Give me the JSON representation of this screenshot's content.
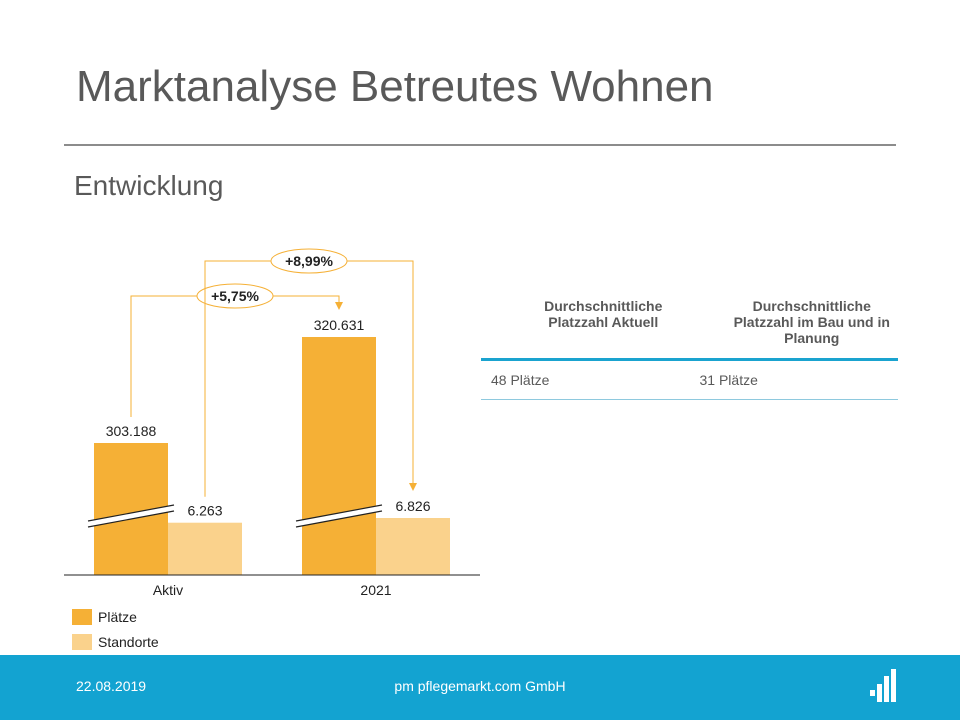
{
  "slide": {
    "title": "Marktanalyse Betreutes Wohnen",
    "subtitle": "Entwicklung"
  },
  "colors": {
    "plaetze": "#f5b036",
    "standorte": "#fad28c",
    "accent": "#13a3d1",
    "connector": "#f5b036"
  },
  "chart_data": {
    "type": "bar",
    "categories": [
      "Aktiv",
      "2021"
    ],
    "series": [
      {
        "name": "Plätze",
        "values": [
          303188,
          320631
        ],
        "labels": [
          "303.188",
          "320.631"
        ]
      },
      {
        "name": "Standorte",
        "values": [
          6263,
          6826
        ],
        "labels": [
          "6.263",
          "6.826"
        ]
      }
    ],
    "axis_break": true,
    "changes": [
      {
        "series": "Plätze",
        "label": "+5,75%"
      },
      {
        "series": "Standorte",
        "label": "+8,99%"
      }
    ],
    "legend": [
      "Plätze",
      "Standorte"
    ],
    "legend_position": "bottom-left"
  },
  "stats_table": {
    "headers": [
      "Durchschnittliche Platzzahl Aktuell",
      "Durchschnittliche Platzzahl im Bau und in Planung"
    ],
    "values": [
      "48 Plätze",
      "31 Plätze"
    ]
  },
  "footer": {
    "date": "22.08.2019",
    "company": "pm pflegemarkt.com GmbH",
    "logo": "pflegemarkt-logo-icon"
  }
}
